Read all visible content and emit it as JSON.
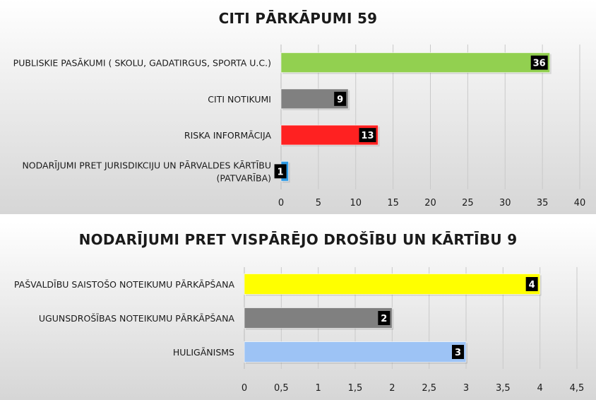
{
  "chart_data": [
    {
      "type": "bar",
      "orientation": "horizontal",
      "title": "CITI PĀRKĀPUMI 59",
      "categories": [
        "PUBLISKIE PASĀKUMI ( SKOLU, GADATIRGUS, SPORTA U.C.)",
        "CITI NOTIKUMI",
        "RISKA INFORMĀCIJA",
        "NODARĪJUMI PRET JURISDIKCIJU UN PĀRVALDES KĀRTĪBU (PATVARĪBA)"
      ],
      "category_lines": [
        [
          "PUBLISKIE PASĀKUMI ( SKOLU, GADATIRGUS, SPORTA U.C.)"
        ],
        [
          "CITI NOTIKUMI"
        ],
        [
          "RISKA INFORMĀCIJA"
        ],
        [
          "NODARĪJUMI PRET JURISDIKCIJU UN PĀRVALDES KĀRTĪBU",
          "(PATVARĪBA)"
        ]
      ],
      "values": [
        36,
        9,
        13,
        1
      ],
      "data_labels": [
        "36",
        "9",
        "13",
        "1"
      ],
      "colors": [
        "#92d050",
        "#808080",
        "#ff2121",
        "#2e9be6"
      ],
      "xlim": [
        0,
        40
      ],
      "ticks": [
        0,
        5,
        10,
        15,
        20,
        25,
        30,
        35,
        40
      ],
      "tick_labels": [
        "0",
        "5",
        "10",
        "15",
        "20",
        "25",
        "30",
        "35",
        "40"
      ],
      "grid": true
    },
    {
      "type": "bar",
      "orientation": "horizontal",
      "title": "NODARĪJUMI PRET VISPĀRĒJO DROŠĪBU UN KĀRTĪBU 9",
      "categories": [
        "PAŠVALDĪBU SAISTOŠO NOTEIKUMU PĀRKĀPŠANA",
        "UGUNSDROŠĪBAS NOTEIKUMU PĀRKĀPŠANA",
        "HULIGĀNISMS"
      ],
      "category_lines": [
        [
          "PAŠVALDĪBU SAISTOŠO NOTEIKUMU PĀRKĀPŠANA"
        ],
        [
          "UGUNSDROŠĪBAS NOTEIKUMU PĀRKĀPŠANA"
        ],
        [
          "HULIGĀNISMS"
        ]
      ],
      "values": [
        4,
        2,
        3
      ],
      "data_labels": [
        "4",
        "2",
        "3"
      ],
      "colors": [
        "#ffff00",
        "#808080",
        "#9dc3f5"
      ],
      "xlim": [
        0,
        4.5
      ],
      "ticks": [
        0,
        0.5,
        1,
        1.5,
        2,
        2.5,
        3,
        3.5,
        4,
        4.5
      ],
      "tick_labels": [
        "0",
        "0,5",
        "1",
        "1,5",
        "2",
        "2,5",
        "3",
        "3,5",
        "4",
        "4,5"
      ],
      "grid": true
    }
  ]
}
